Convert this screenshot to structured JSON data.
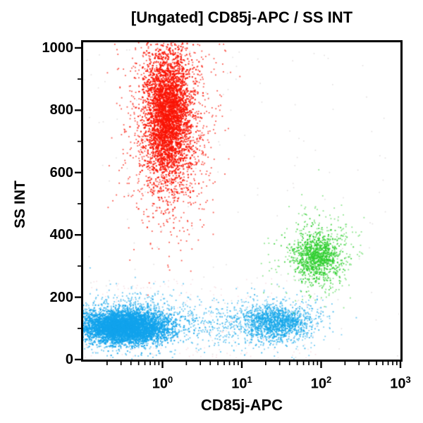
{
  "title": "[Ungated] CD85j-APC / SS INT",
  "chart_data": {
    "type": "scatter",
    "subtype": "flow-cytometry-dot-plot",
    "title": "[Ungated] CD85j-APC / SS INT",
    "xlabel": "CD85j-APC",
    "ylabel": "SS INT",
    "x_scale": "log",
    "x_range": [
      0.1,
      1000
    ],
    "y_scale": "linear",
    "y_range": [
      0,
      1018
    ],
    "grid": false,
    "legend": "none",
    "x_major_ticks": [
      {
        "value": 1,
        "base": "10",
        "exp": "0"
      },
      {
        "value": 10,
        "base": "10",
        "exp": "1"
      },
      {
        "value": 100,
        "base": "10",
        "exp": "2"
      },
      {
        "value": 1000,
        "base": "10",
        "exp": "3"
      }
    ],
    "y_major_ticks": [
      0,
      200,
      400,
      600,
      800,
      1000
    ],
    "y_minor_ticks": [
      100,
      300,
      500,
      700,
      900
    ],
    "frame_color": "#000000",
    "populations": [
      {
        "name": "debris-scatter-gray",
        "dist": "uniform",
        "color": "#a8a0a0",
        "alpha": 0.35,
        "n": 160,
        "x_log_min": -1.0,
        "x_log_max": 3.0,
        "y_min": 0,
        "y_max": 1010,
        "size": 1.6
      },
      {
        "name": "debris-scatter-pink",
        "dist": "uniform",
        "color": "#f0b9c4",
        "alpha": 0.45,
        "n": 260,
        "x_log_min": -1.0,
        "x_log_max": 2.0,
        "y_min": 0,
        "y_max": 260,
        "size": 1.6
      },
      {
        "name": "lymphocytes-bridge",
        "dist": "gaussian",
        "color": "#17a7ea",
        "alpha": 0.65,
        "n": 380,
        "x_log_mean": 0.95,
        "x_log_sd": 0.45,
        "y_mean": 120,
        "y_sd": 38,
        "size": 1.8
      },
      {
        "name": "cd85j-mid-cluster-halo",
        "dist": "gaussian",
        "color": "#17a7ea",
        "alpha": 0.55,
        "n": 450,
        "x_log_mean": 1.45,
        "x_log_sd": 0.3,
        "y_mean": 125,
        "y_sd": 40,
        "size": 1.8
      },
      {
        "name": "cd85j-mid-cluster-core",
        "dist": "gaussian",
        "color": "#17a7ea",
        "alpha": 0.8,
        "n": 950,
        "x_log_mean": 1.44,
        "x_log_sd": 0.21,
        "y_mean": 118,
        "y_sd": 27,
        "size": 1.9
      },
      {
        "name": "lymphocytes-low-ssc-halo",
        "dist": "gaussian",
        "color": "#17a7ea",
        "alpha": 0.6,
        "n": 1500,
        "x_log_mean": -0.42,
        "x_log_sd": 0.38,
        "y_mean": 115,
        "y_sd": 44,
        "size": 1.9
      },
      {
        "name": "lymphocytes-low-ssc-core",
        "dist": "gaussian",
        "color": "#12a3ec",
        "alpha": 0.9,
        "n": 3400,
        "x_log_mean": -0.48,
        "x_log_sd": 0.27,
        "y_mean": 103,
        "y_sd": 25,
        "size": 2.1
      },
      {
        "name": "cd85j-pos-monocytes-halo",
        "dist": "gaussian",
        "color": "#2fd02f",
        "alpha": 0.55,
        "n": 380,
        "x_log_mean": 1.95,
        "x_log_sd": 0.28,
        "y_mean": 330,
        "y_sd": 72,
        "size": 1.8
      },
      {
        "name": "cd85j-pos-monocytes-core",
        "dist": "gaussian",
        "color": "#2bce2b",
        "alpha": 0.85,
        "n": 800,
        "x_log_mean": 1.95,
        "x_log_sd": 0.15,
        "y_mean": 330,
        "y_sd": 40,
        "size": 1.9
      },
      {
        "name": "granulocytes-high-ssc-halo",
        "dist": "gaussian",
        "color": "#fa1505",
        "alpha": 0.7,
        "n": 1500,
        "x_log_mean": 0.09,
        "x_log_sd": 0.27,
        "y_mean": 745,
        "y_sd": 165,
        "size": 1.8
      },
      {
        "name": "granulocytes-high-ssc-core",
        "dist": "gaussian",
        "color": "#fa1505",
        "alpha": 0.92,
        "n": 2700,
        "x_log_mean": 0.07,
        "x_log_sd": 0.14,
        "y_mean": 785,
        "y_sd": 105,
        "size": 2.1
      }
    ]
  },
  "colors": {
    "background": "#ffffff",
    "frame": "#000000",
    "text": "#000000",
    "red_population": "#fa1505",
    "green_population": "#2bce2b",
    "cyan_population": "#12a3ec"
  }
}
